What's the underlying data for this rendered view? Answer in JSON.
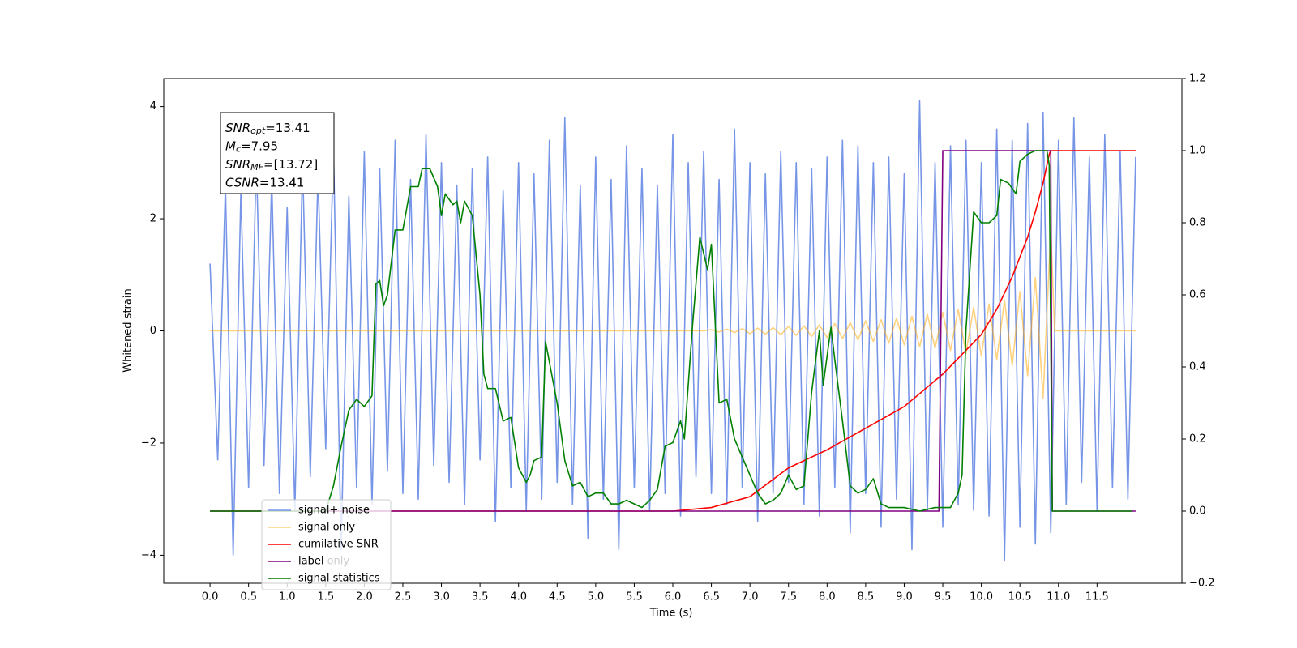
{
  "chart_data": {
    "type": "line",
    "xlabel": "Time (s)",
    "ylabel": "Whitened strain",
    "xlim": [
      -0.6,
      12.6
    ],
    "ylim": [
      -4.5,
      4.5
    ],
    "y2lim": [
      -0.2,
      1.2
    ],
    "xticks": [
      {
        "value": 0,
        "label": "0.0"
      },
      0.5,
      {
        "value": 1,
        "label": "1.0"
      },
      1.5,
      {
        "value": 2,
        "label": "2.0"
      },
      2.5,
      {
        "value": 3,
        "label": "3.0"
      },
      3.5,
      {
        "value": 4,
        "label": "4.0"
      },
      4.5,
      {
        "value": 5,
        "label": "5.0"
      },
      5.5,
      {
        "value": 6,
        "label": "6.0"
      },
      6.5,
      {
        "value": 7,
        "label": "7.0"
      },
      7.5,
      {
        "value": 8,
        "label": "8.0"
      },
      8.5,
      {
        "value": 9,
        "label": "9.0"
      },
      9.5,
      {
        "value": 10,
        "label": "10.0"
      },
      10.5,
      {
        "value": 11,
        "label": "11.0"
      },
      11.5
    ],
    "yticks": [
      {
        "value": -4,
        "label": "−4"
      },
      {
        "value": -2,
        "label": "−2"
      },
      0,
      2,
      4
    ],
    "y2ticks": [
      {
        "value": -0.2,
        "label": "−0.2"
      },
      {
        "value": 0,
        "label": "0.0"
      },
      0.2,
      0.4,
      0.6,
      0.8,
      {
        "value": 1,
        "label": "1.0"
      },
      1.2
    ],
    "grid": false,
    "legend": "lower left",
    "occluded_legend_entry": "label only",
    "annotations": [
      {
        "symbol": "SNR",
        "subscript": "opt",
        "value": "=13.41"
      },
      {
        "symbol": "M",
        "subscript": "c",
        "value": "=7.95"
      },
      {
        "symbol": "SNR",
        "subscript": "MF",
        "value": "=[13.72]"
      },
      {
        "symbol": "CSNR",
        "value": "=13.41"
      }
    ],
    "series": [
      {
        "name": "signal+ noise",
        "color": "#6f8fe6",
        "opacity": 0.95,
        "x": [
          0.0,
          0.1,
          0.2,
          0.3,
          0.4,
          0.5,
          0.6,
          0.7,
          0.8,
          0.9,
          1.0,
          1.1,
          1.2,
          1.3,
          1.4,
          1.5,
          1.6,
          1.7,
          1.8,
          1.9,
          2.0,
          2.1,
          2.2,
          2.3,
          2.4,
          2.5,
          2.6,
          2.7,
          2.8,
          2.9,
          3.0,
          3.1,
          3.2,
          3.3,
          3.4,
          3.5,
          3.6,
          3.7,
          3.8,
          3.9,
          4.0,
          4.1,
          4.2,
          4.3,
          4.4,
          4.5,
          4.6,
          4.7,
          4.8,
          4.9,
          5.0,
          5.1,
          5.2,
          5.3,
          5.4,
          5.5,
          5.6,
          5.7,
          5.8,
          5.9,
          6.0,
          6.1,
          6.2,
          6.3,
          6.4,
          6.5,
          6.6,
          6.7,
          6.8,
          6.9,
          7.0,
          7.1,
          7.2,
          7.3,
          7.4,
          7.5,
          7.6,
          7.7,
          7.8,
          7.9,
          8.0,
          8.1,
          8.2,
          8.3,
          8.4,
          8.5,
          8.6,
          8.7,
          8.8,
          8.9,
          9.0,
          9.1,
          9.2,
          9.3,
          9.4,
          9.5,
          9.6,
          9.7,
          9.8,
          9.9,
          10.0,
          10.1,
          10.2,
          10.3,
          10.4,
          10.5,
          10.6,
          10.7,
          10.8,
          10.9,
          11.0,
          11.1,
          11.2,
          11.3,
          11.4,
          11.5,
          11.6,
          11.7,
          11.8,
          11.9,
          12.0
        ],
        "values": [
          1.2,
          -2.3,
          2.6,
          -4.0,
          2.5,
          -2.8,
          3.1,
          -2.4,
          2.7,
          -2.9,
          2.2,
          -3.2,
          3.0,
          -2.6,
          2.8,
          -2.1,
          3.3,
          -3.9,
          2.4,
          -2.8,
          3.2,
          -3.1,
          2.9,
          -2.5,
          3.4,
          -2.9,
          2.7,
          -3.0,
          3.5,
          -2.4,
          3.0,
          -2.7,
          2.6,
          -3.1,
          2.9,
          -2.3,
          3.1,
          -3.4,
          2.5,
          -2.8,
          3.0,
          -3.2,
          2.8,
          -3.0,
          3.4,
          -2.7,
          3.8,
          -3.1,
          2.6,
          -3.7,
          3.1,
          -3.0,
          2.7,
          -3.9,
          3.3,
          -2.8,
          2.9,
          -3.2,
          2.6,
          -2.9,
          3.5,
          -3.3,
          3.0,
          -2.6,
          3.2,
          -2.9,
          2.7,
          -3.1,
          3.6,
          -2.8,
          3.0,
          -3.4,
          2.8,
          -2.9,
          3.2,
          -2.7,
          3.0,
          -3.1,
          2.9,
          -3.3,
          3.1,
          -2.8,
          3.4,
          -3.6,
          3.3,
          -2.9,
          3.0,
          -3.5,
          3.1,
          -3.0,
          2.8,
          -3.9,
          4.1,
          -3.2,
          3.0,
          -3.5,
          3.3,
          -3.1,
          3.4,
          -3.2,
          3.0,
          -3.3,
          3.6,
          -4.1,
          3.4,
          -3.5,
          3.7,
          -3.8,
          3.9,
          -3.6,
          3.4,
          -3.1,
          3.8,
          -2.7,
          3.1,
          -3.2,
          3.5,
          -2.8,
          3.2,
          -3.0,
          3.1
        ]
      },
      {
        "name": "signal only",
        "color": "#ffa500",
        "opacity": 0.5,
        "x": [
          0.0,
          6.4,
          6.5,
          6.6,
          6.7,
          6.8,
          6.9,
          7.0,
          7.1,
          7.2,
          7.3,
          7.4,
          7.5,
          7.6,
          7.7,
          7.8,
          7.9,
          8.0,
          8.1,
          8.2,
          8.3,
          8.4,
          8.5,
          8.6,
          8.7,
          8.8,
          8.9,
          9.0,
          9.1,
          9.2,
          9.3,
          9.4,
          9.5,
          9.6,
          9.7,
          9.8,
          9.9,
          10.0,
          10.1,
          10.2,
          10.3,
          10.4,
          10.5,
          10.6,
          10.7,
          10.8,
          10.9,
          10.95,
          12.0
        ],
        "values": [
          0,
          0,
          0.02,
          -0.02,
          0.03,
          -0.03,
          0.04,
          -0.05,
          0.05,
          -0.06,
          0.06,
          -0.07,
          0.08,
          -0.08,
          0.09,
          -0.1,
          0.11,
          -0.12,
          0.13,
          -0.14,
          0.15,
          -0.16,
          0.18,
          -0.19,
          0.2,
          -0.22,
          0.23,
          -0.25,
          0.26,
          -0.28,
          0.3,
          -0.31,
          0.33,
          -0.35,
          0.38,
          -0.4,
          0.42,
          -0.45,
          0.48,
          -0.51,
          0.55,
          -0.62,
          0.7,
          -0.8,
          0.95,
          -1.2,
          1.8,
          0,
          0
        ]
      },
      {
        "name": "cumilative SNR",
        "color": "red",
        "axis": "y2",
        "x": [
          0.0,
          5.5,
          6.0,
          6.5,
          7.0,
          7.5,
          8.0,
          8.5,
          9.0,
          9.5,
          10.0,
          10.2,
          10.4,
          10.6,
          10.7,
          10.8,
          10.88,
          10.9,
          12.0
        ],
        "values": [
          0,
          0,
          0,
          0.01,
          0.04,
          0.12,
          0.17,
          0.23,
          0.29,
          0.38,
          0.49,
          0.56,
          0.65,
          0.76,
          0.83,
          0.91,
          0.99,
          1.0,
          1.0
        ]
      },
      {
        "name": "label",
        "color": "purple",
        "axis": "y2",
        "x": [
          0.0,
          9.45,
          9.5,
          10.9,
          10.92,
          12.0
        ],
        "values": [
          0,
          0,
          1,
          1,
          0,
          0
        ]
      },
      {
        "name": "signal statistics",
        "color": "green",
        "axis": "y2",
        "x": [
          0.0,
          1.5,
          1.6,
          1.7,
          1.8,
          1.9,
          2.0,
          2.1,
          2.15,
          2.2,
          2.25,
          2.3,
          2.4,
          2.5,
          2.6,
          2.7,
          2.75,
          2.85,
          2.95,
          3.0,
          3.05,
          3.15,
          3.2,
          3.25,
          3.3,
          3.4,
          3.5,
          3.55,
          3.6,
          3.7,
          3.8,
          3.9,
          4.0,
          4.1,
          4.15,
          4.2,
          4.3,
          4.35,
          4.5,
          4.6,
          4.7,
          4.8,
          4.9,
          5.0,
          5.1,
          5.2,
          5.3,
          5.4,
          5.5,
          5.6,
          5.7,
          5.8,
          5.9,
          6.0,
          6.1,
          6.15,
          6.25,
          6.35,
          6.45,
          6.5,
          6.6,
          6.7,
          6.8,
          6.9,
          7.0,
          7.1,
          7.2,
          7.3,
          7.4,
          7.5,
          7.6,
          7.7,
          7.8,
          7.9,
          7.95,
          8.05,
          8.1,
          8.2,
          8.3,
          8.4,
          8.5,
          8.6,
          8.7,
          8.8,
          9.0,
          9.2,
          9.4,
          9.6,
          9.7,
          9.75,
          9.8,
          9.9,
          10.0,
          10.1,
          10.2,
          10.25,
          10.35,
          10.45,
          10.5,
          10.6,
          10.7,
          10.85,
          10.88,
          10.92,
          11.95
        ],
        "values": [
          0,
          0,
          0.07,
          0.18,
          0.28,
          0.31,
          0.29,
          0.32,
          0.63,
          0.64,
          0.57,
          0.6,
          0.78,
          0.78,
          0.9,
          0.9,
          0.95,
          0.95,
          0.9,
          0.82,
          0.88,
          0.85,
          0.86,
          0.8,
          0.86,
          0.82,
          0.6,
          0.38,
          0.34,
          0.34,
          0.25,
          0.26,
          0.12,
          0.08,
          0.1,
          0.14,
          0.15,
          0.47,
          0.3,
          0.14,
          0.07,
          0.08,
          0.04,
          0.05,
          0.05,
          0.02,
          0.02,
          0.03,
          0.02,
          0.01,
          0.03,
          0.06,
          0.18,
          0.19,
          0.25,
          0.2,
          0.5,
          0.76,
          0.67,
          0.74,
          0.3,
          0.31,
          0.2,
          0.15,
          0.1,
          0.05,
          0.02,
          0.03,
          0.05,
          0.1,
          0.06,
          0.07,
          0.33,
          0.5,
          0.35,
          0.51,
          0.42,
          0.25,
          0.07,
          0.05,
          0.06,
          0.09,
          0.02,
          0.01,
          0.01,
          0,
          0.01,
          0.01,
          0.05,
          0.1,
          0.5,
          0.83,
          0.8,
          0.8,
          0.82,
          0.92,
          0.91,
          0.88,
          0.97,
          0.99,
          1.0,
          1.0,
          0.96,
          0,
          0
        ]
      }
    ]
  }
}
